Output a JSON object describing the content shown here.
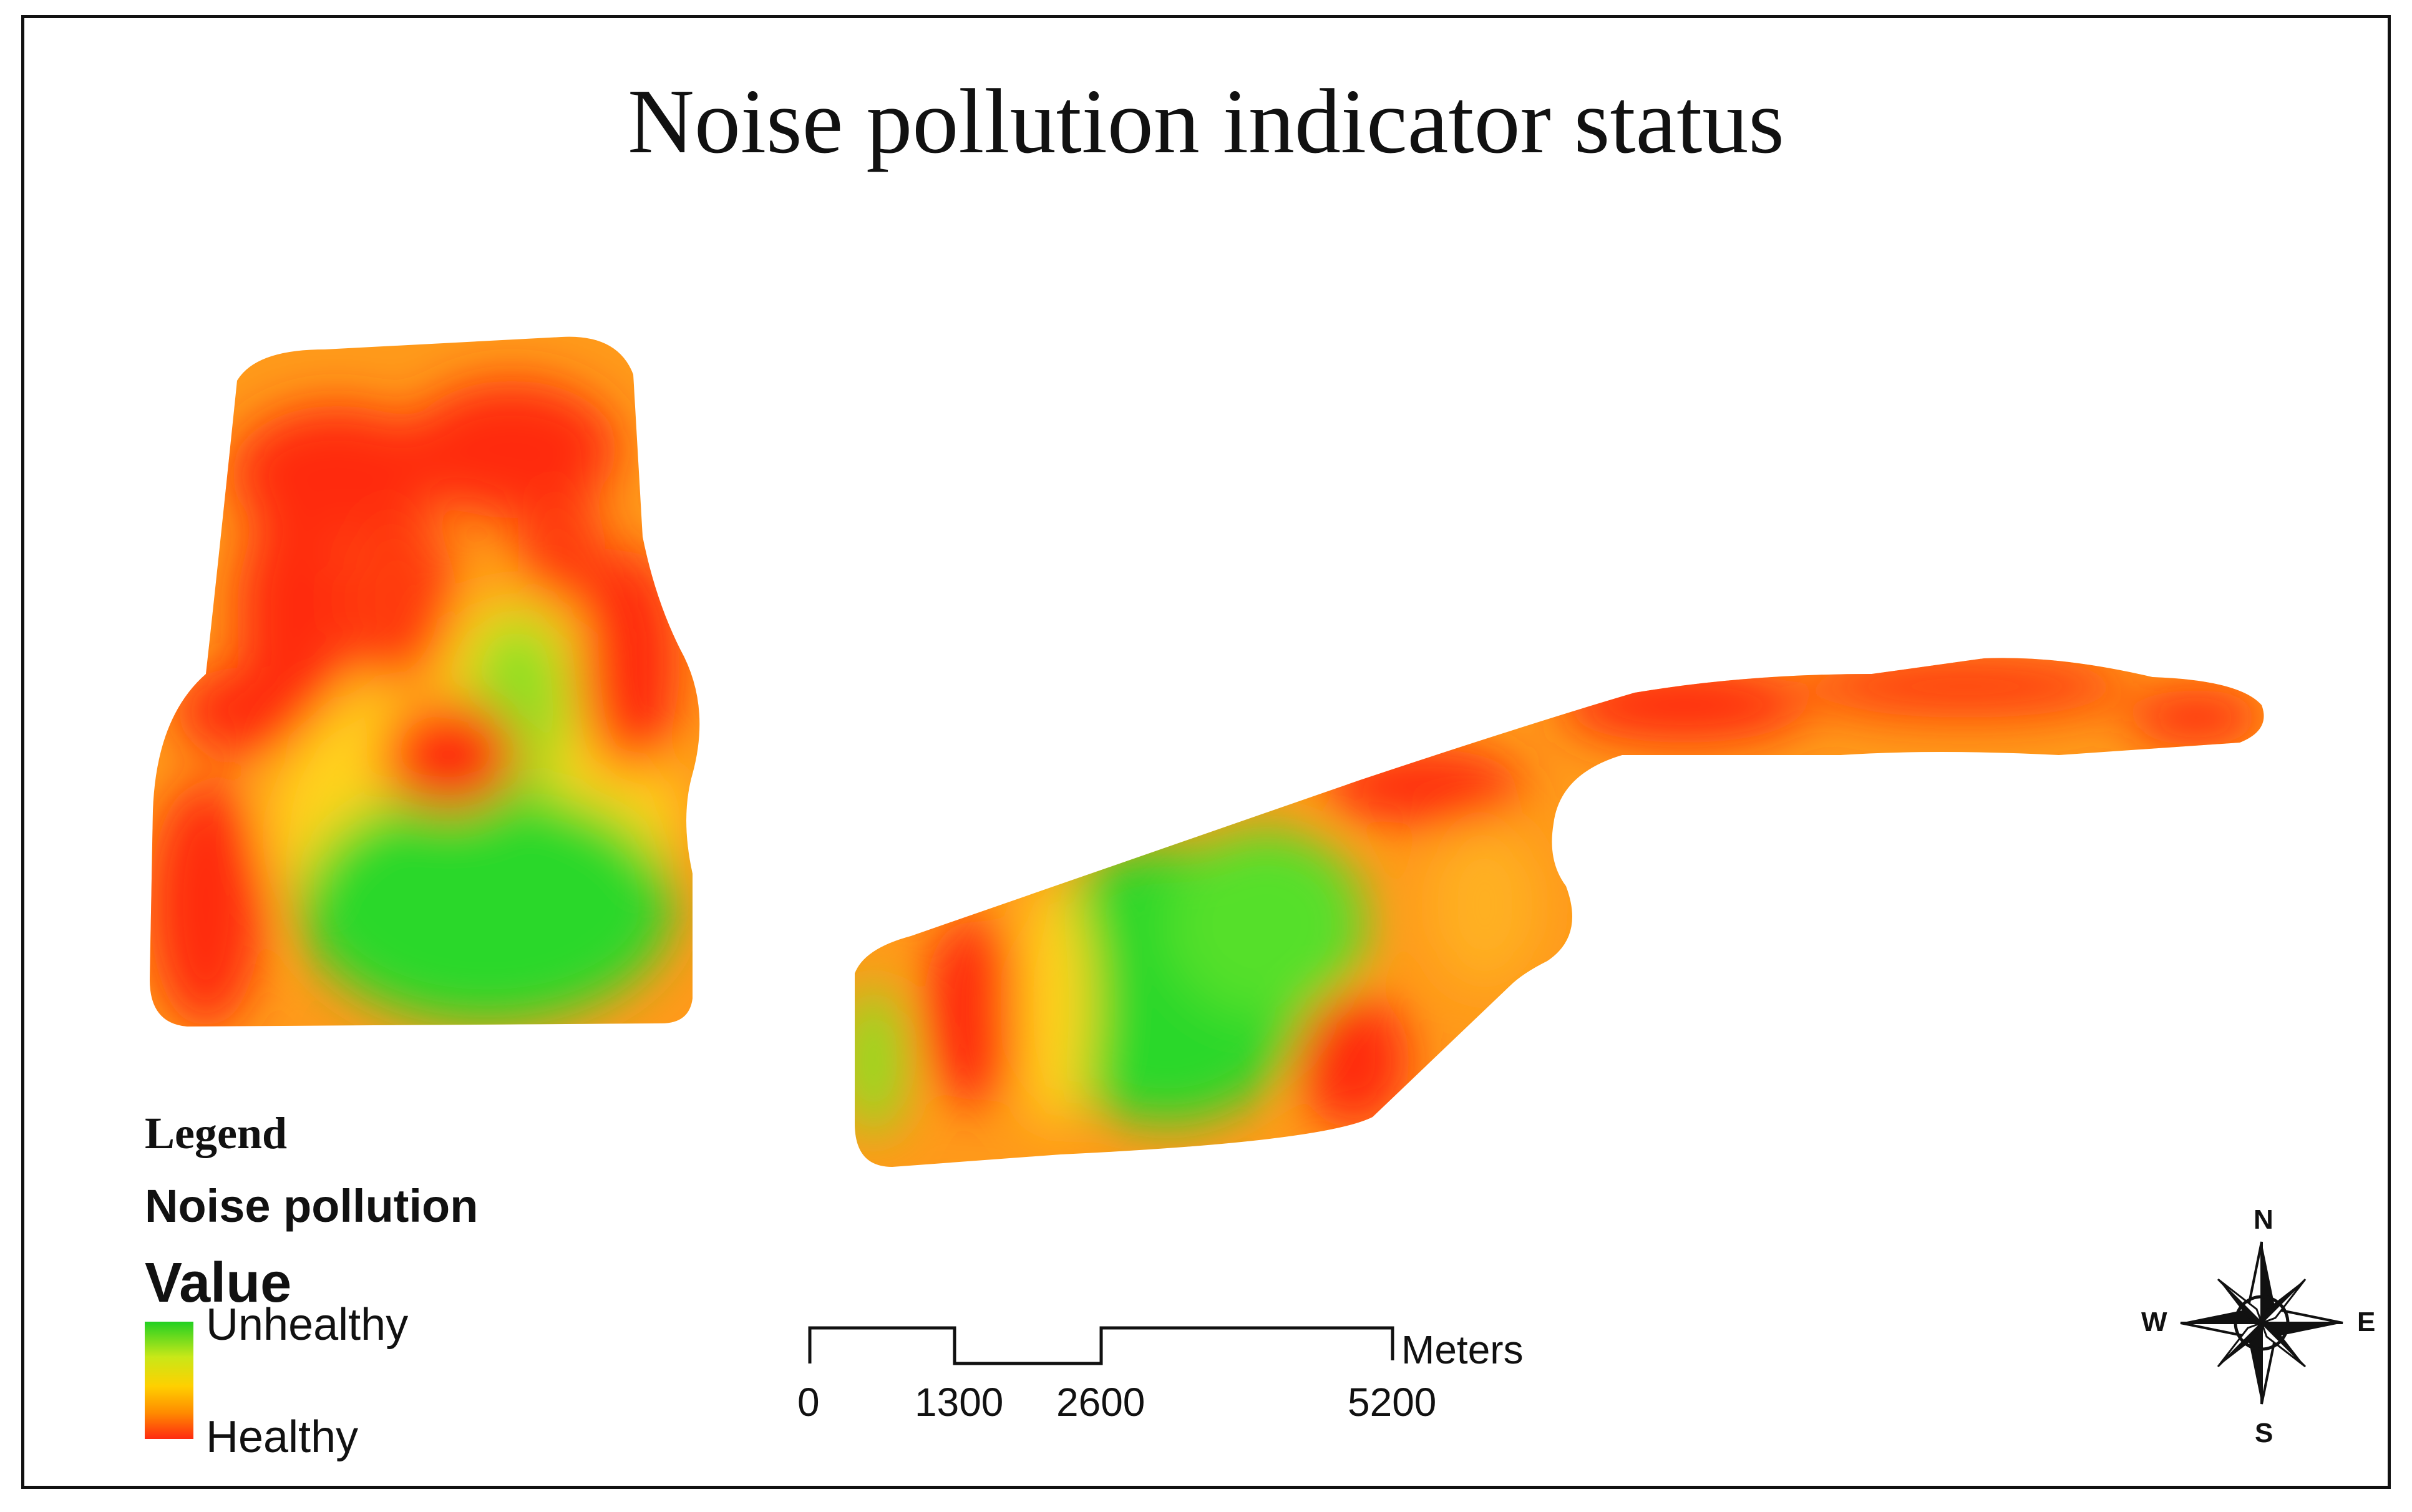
{
  "title": "Noise pollution indicator status",
  "legend": {
    "heading": "Legend",
    "layer": "Noise pollution",
    "field": "Value",
    "high_label": "Unhealthy",
    "low_label": "Healthy",
    "ramp_colors": [
      "#22d022",
      "#c8e818",
      "#ffd000",
      "#ff8a00",
      "#ff2a10"
    ]
  },
  "scale_bar": {
    "ticks": [
      "0",
      "1300",
      "2600",
      "5200"
    ],
    "unit": "Meters"
  },
  "north_arrow": {
    "n": "N",
    "s": "S",
    "e": "E",
    "w": "W",
    "icon": "compass-rose-icon"
  },
  "colors": {
    "healthy": "#ff2a10",
    "moderate": "#ff9a1a",
    "transition": "#ffd21a",
    "unhealthy": "#2bd82b"
  }
}
